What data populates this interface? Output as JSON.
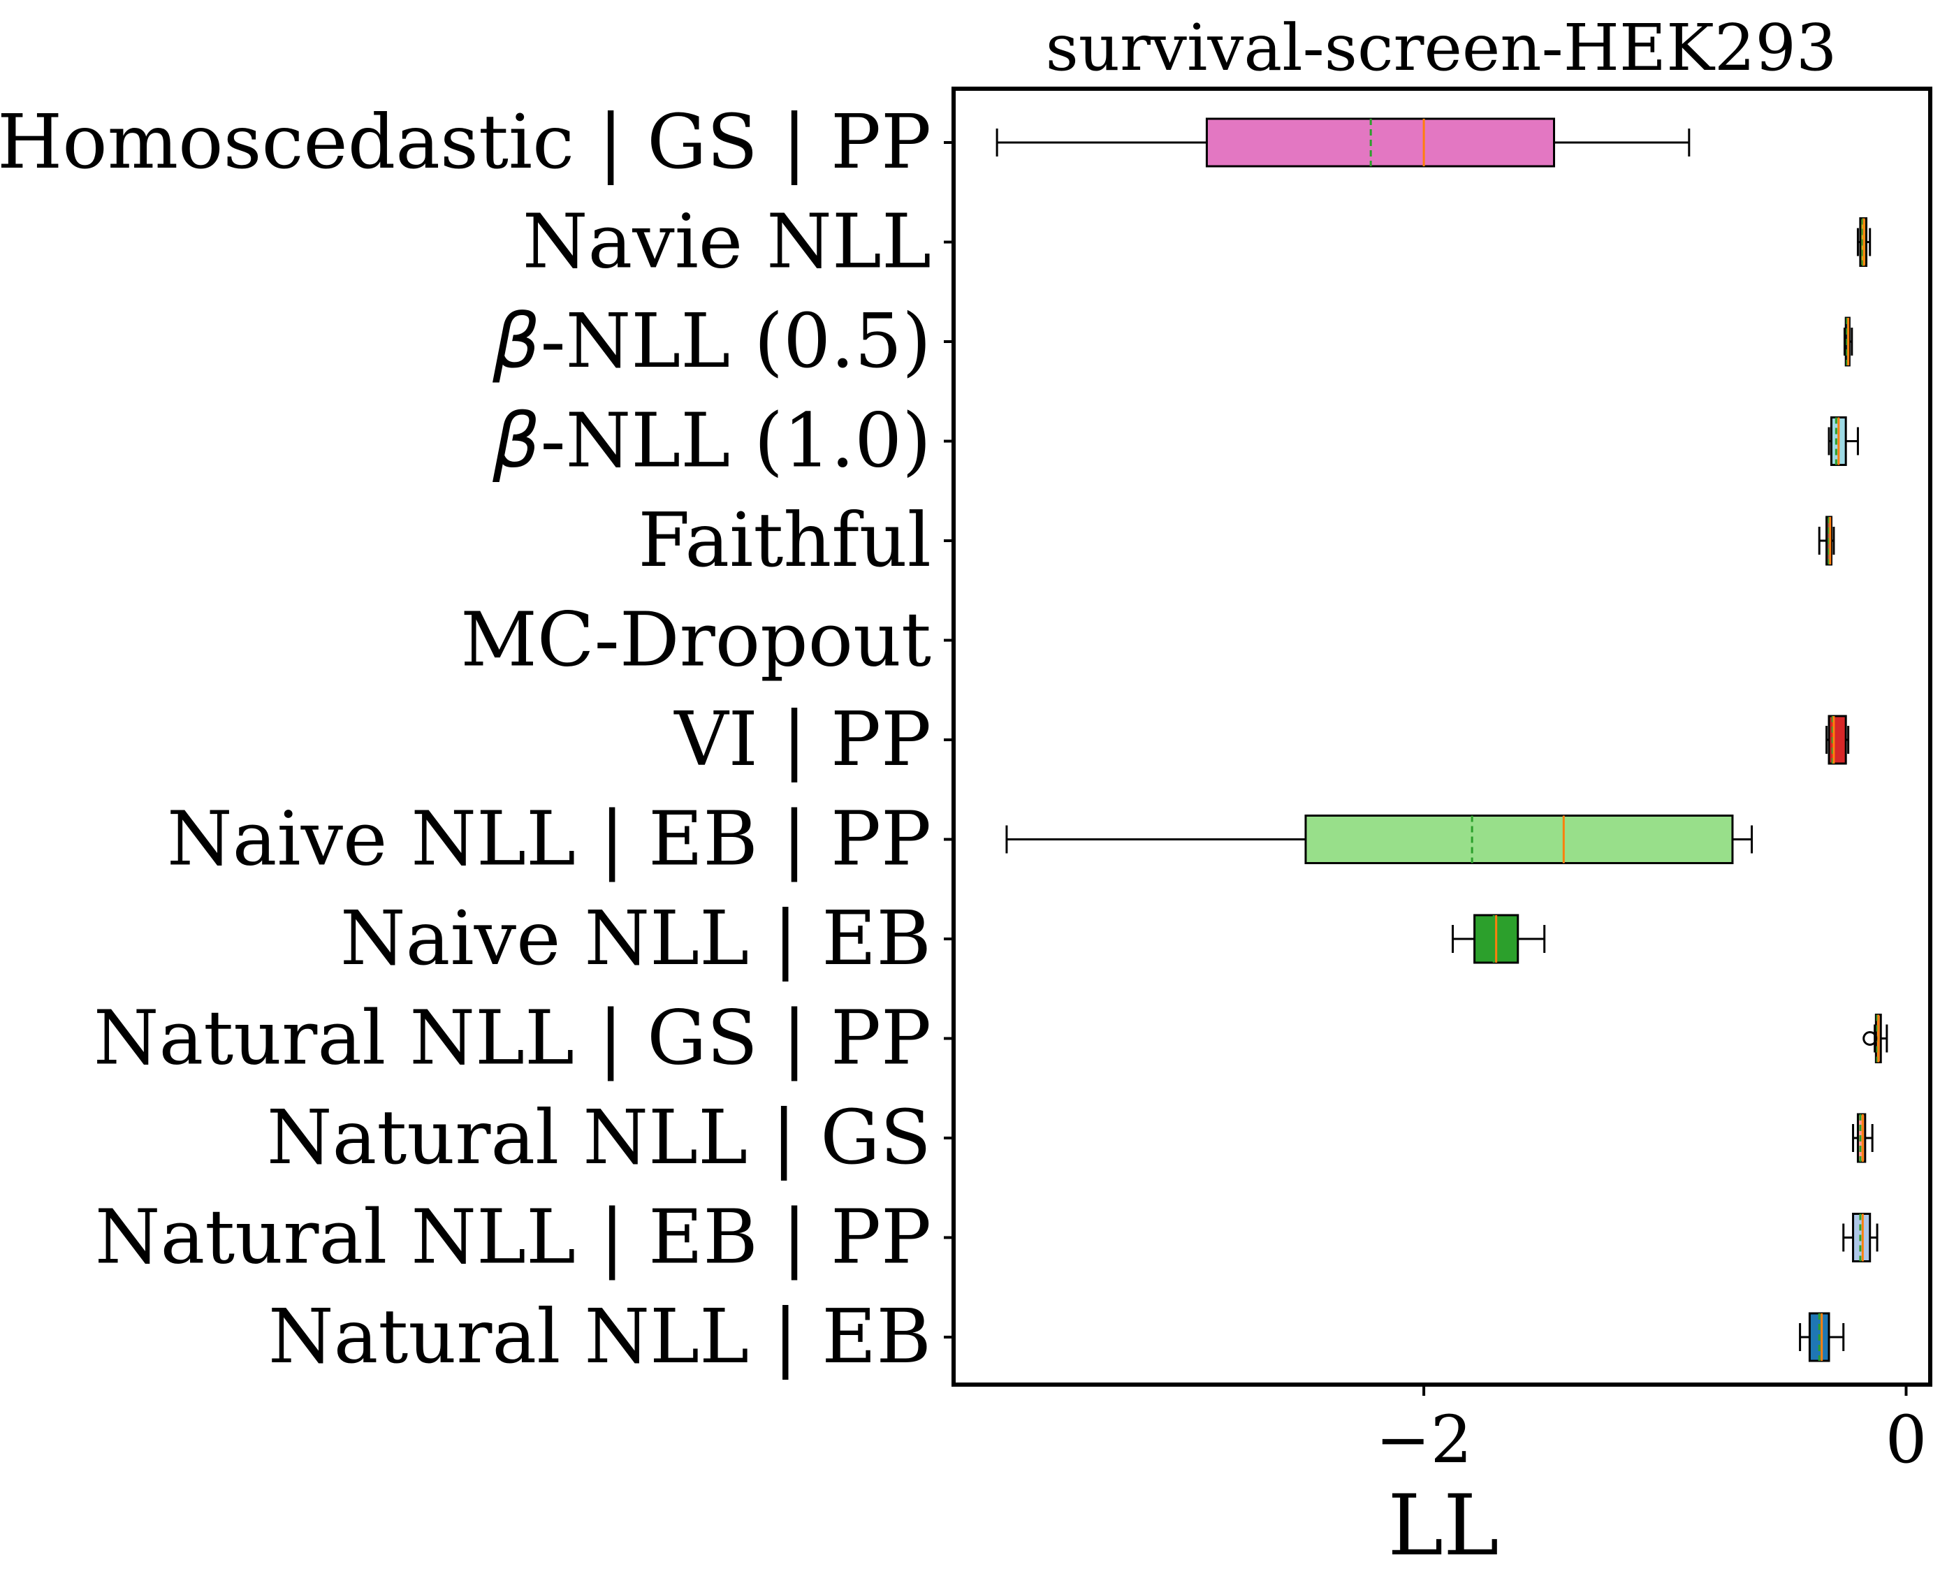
{
  "chart_data": {
    "type": "box",
    "orientation": "horizontal",
    "title": "survival-screen-HEK293",
    "xlabel": "LL",
    "ylabel": "",
    "xlim": [
      -3.95,
      0.1
    ],
    "xticks": [
      {
        "value": -2,
        "label": "−2"
      },
      {
        "value": 0,
        "label": "0"
      }
    ],
    "grid": false,
    "legend": "none",
    "median_color": "#ff7f0e",
    "mean_color": "#2ca02c",
    "categories": [
      {
        "label": "Homoscedastic | GS | PP",
        "color": "#e377c2",
        "whisker_low": -3.77,
        "q1": -2.9,
        "median": -2.0,
        "mean": -2.22,
        "q3": -1.46,
        "whisker_high": -0.9,
        "outliers": []
      },
      {
        "label": "Navie NLL",
        "color": "#bcbd22",
        "whisker_low": -0.2,
        "q1": -0.19,
        "median": -0.175,
        "mean": -0.18,
        "q3": -0.165,
        "whisker_high": -0.15,
        "outliers": []
      },
      {
        "label": "β-NLL (0.5)",
        "color": "#17becf",
        "whisker_low": -0.255,
        "q1": -0.25,
        "median": -0.24,
        "mean": -0.245,
        "q3": -0.235,
        "whisker_high": -0.225,
        "outliers": []
      },
      {
        "label": "β-NLL (1.0)",
        "color": "#9edae5",
        "whisker_low": -0.32,
        "q1": -0.31,
        "median": -0.28,
        "mean": -0.29,
        "q3": -0.25,
        "whisker_high": -0.2,
        "outliers": []
      },
      {
        "label": "Faithful",
        "color": "#8c564b",
        "whisker_low": -0.36,
        "q1": -0.33,
        "median": -0.315,
        "mean": -0.32,
        "q3": -0.31,
        "whisker_high": -0.3,
        "outliers": []
      },
      {
        "label": "MC-Dropout",
        "color": "#9467bd",
        "whisker_low": null,
        "q1": null,
        "median": null,
        "mean": null,
        "q3": null,
        "whisker_high": null,
        "outliers": []
      },
      {
        "label": "VI | PP",
        "color": "#d62728",
        "whisker_low": -0.33,
        "q1": -0.32,
        "median": -0.3,
        "mean": -0.305,
        "q3": -0.25,
        "whisker_high": -0.24,
        "outliers": []
      },
      {
        "label": "Naive NLL | EB | PP",
        "color": "#98df8a",
        "whisker_low": -3.73,
        "q1": -2.49,
        "median": -1.42,
        "mean": -1.8,
        "q3": -0.72,
        "whisker_high": -0.64,
        "outliers": []
      },
      {
        "label": "Naive NLL | EB ",
        "color": "#2ca02c",
        "whisker_low": -1.88,
        "q1": -1.79,
        "median": -1.7,
        "mean": -1.71,
        "q3": -1.61,
        "whisker_high": -1.5,
        "outliers": []
      },
      {
        "label": "Natural NLL | GS | PP",
        "color": "#ffbb78",
        "whisker_low": -0.13,
        "q1": -0.125,
        "median": -0.115,
        "mean": -0.12,
        "q3": -0.105,
        "whisker_high": -0.08,
        "outliers": [
          -0.15
        ]
      },
      {
        "label": "Natural NLL | GS",
        "color": "#ff9896",
        "whisker_low": -0.22,
        "q1": -0.2,
        "median": -0.18,
        "mean": -0.19,
        "q3": -0.17,
        "whisker_high": -0.14,
        "outliers": []
      },
      {
        "label": "Natural NLL | EB | PP",
        "color": "#aec7e8",
        "whisker_low": -0.26,
        "q1": -0.22,
        "median": -0.18,
        "mean": -0.19,
        "q3": -0.15,
        "whisker_high": -0.12,
        "outliers": []
      },
      {
        "label": "Natural NLL | EB ",
        "color": "#1f77b4",
        "whisker_low": -0.44,
        "q1": -0.4,
        "median": -0.35,
        "mean": -0.36,
        "q3": -0.32,
        "whisker_high": -0.26,
        "outliers": []
      }
    ]
  }
}
